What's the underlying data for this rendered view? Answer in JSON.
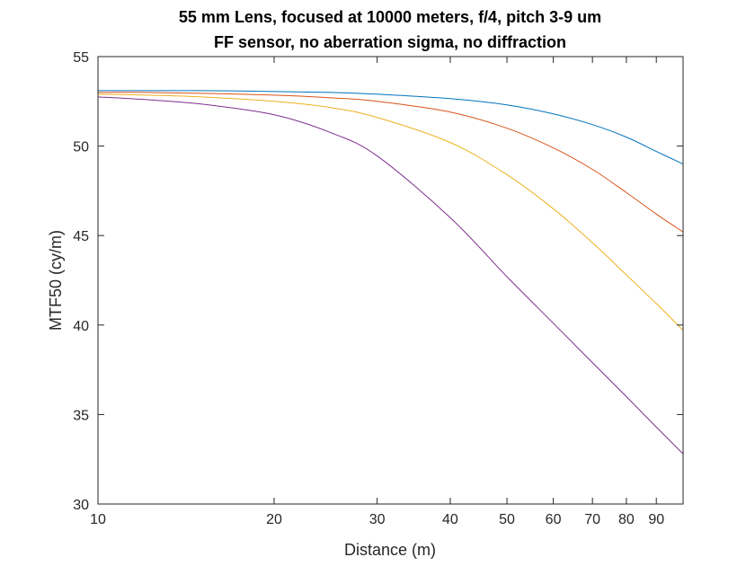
{
  "chart_data": {
    "type": "line",
    "title": [
      "55 mm Lens, focused at 10000 meters, f/4, pitch 3-9 um",
      "FF sensor, no aberration sigma, no diffraction"
    ],
    "xlabel": "Distance (m)",
    "ylabel": "MTF50 (cy/m)",
    "x_scale": "log",
    "xlim": [
      10,
      100
    ],
    "ylim": [
      30,
      55
    ],
    "x_ticks": [
      10,
      20,
      30,
      40,
      50,
      60,
      70,
      80,
      90
    ],
    "x_tick_labels": [
      "10",
      "20",
      "30",
      "40",
      "50",
      "60",
      "70",
      "80",
      "90"
    ],
    "y_ticks": [
      30,
      35,
      40,
      45,
      50,
      55
    ],
    "y_tick_labels": [
      "30",
      "35",
      "40",
      "45",
      "50",
      "55"
    ],
    "grid": false,
    "legend": "none",
    "x": [
      10,
      12,
      15,
      20,
      25,
      30,
      40,
      50,
      60,
      70,
      80,
      90,
      100
    ],
    "series": [
      {
        "color": "#0072BD",
        "values": [
          53.1,
          53.1,
          53.1,
          53.05,
          53.0,
          52.9,
          52.65,
          52.3,
          51.8,
          51.2,
          50.5,
          49.7,
          49.0
        ]
      },
      {
        "color": "#D95319",
        "values": [
          53.0,
          53.0,
          52.95,
          52.85,
          52.7,
          52.5,
          51.9,
          51.0,
          49.9,
          48.7,
          47.4,
          46.2,
          45.2
        ]
      },
      {
        "color": "#EDB120",
        "values": [
          52.9,
          52.85,
          52.75,
          52.5,
          52.15,
          51.6,
          50.2,
          48.4,
          46.5,
          44.6,
          42.8,
          41.2,
          39.7
        ]
      },
      {
        "color": "#7E2F8E",
        "values": [
          52.75,
          52.6,
          52.35,
          51.75,
          50.75,
          49.45,
          46.0,
          42.7,
          40.1,
          37.9,
          36.0,
          34.3,
          32.8
        ]
      }
    ]
  }
}
